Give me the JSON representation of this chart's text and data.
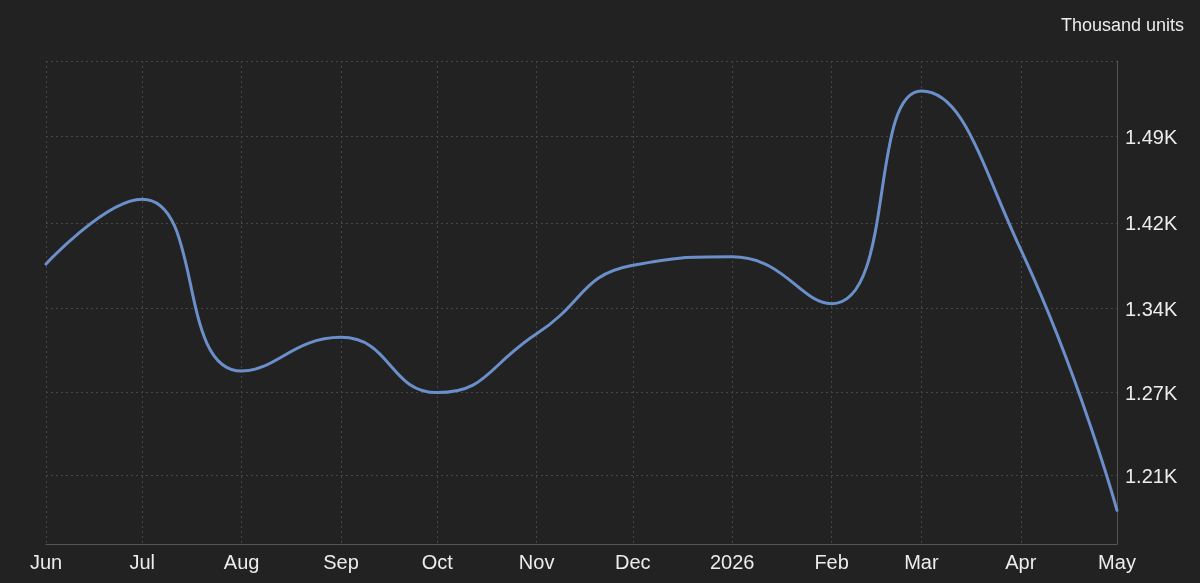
{
  "chart_data": {
    "type": "line",
    "ylabel": "Thousand units",
    "x": [
      "2025-06",
      "2025-07",
      "2025-08",
      "2025-09",
      "2025-10",
      "2025-11",
      "2025-12",
      "2026-01",
      "2026-02",
      "2026-03",
      "2026-04",
      "2026-05"
    ],
    "values": [
      1381,
      1435,
      1292,
      1320,
      1274,
      1323,
      1380,
      1387,
      1348,
      1525,
      1393,
      1176
    ],
    "color": "#6b8fca",
    "xlim": [
      "2025-06",
      "2026-05"
    ],
    "xticks": [
      {
        "value": "2025-06",
        "label": "Jun"
      },
      {
        "value": "2025-07",
        "label": "Jul"
      },
      {
        "value": "2025-08",
        "label": "Aug"
      },
      {
        "value": "2025-09",
        "label": "Sep"
      },
      {
        "value": "2025-10",
        "label": "Oct"
      },
      {
        "value": "2025-11",
        "label": "Nov"
      },
      {
        "value": "2025-12",
        "label": "Dec"
      },
      {
        "value": "2026-01",
        "label": "2026"
      },
      {
        "value": "2026-02",
        "label": "Feb"
      },
      {
        "value": "2026-03",
        "label": "Mar"
      },
      {
        "value": "2026-04",
        "label": "Apr"
      },
      {
        "value": "2026-05",
        "label": "May"
      }
    ],
    "ylim": [
      1148,
      1550
    ],
    "yticks": [
      {
        "value": 1205,
        "label": "1.21K"
      },
      {
        "value": 1274,
        "label": "1.27K"
      },
      {
        "value": 1344,
        "label": "1.34K"
      },
      {
        "value": 1415,
        "label": "1.42K"
      },
      {
        "value": 1487,
        "label": "1.49K"
      },
      {
        "value": 1550,
        "label": null
      }
    ],
    "grid": true
  }
}
